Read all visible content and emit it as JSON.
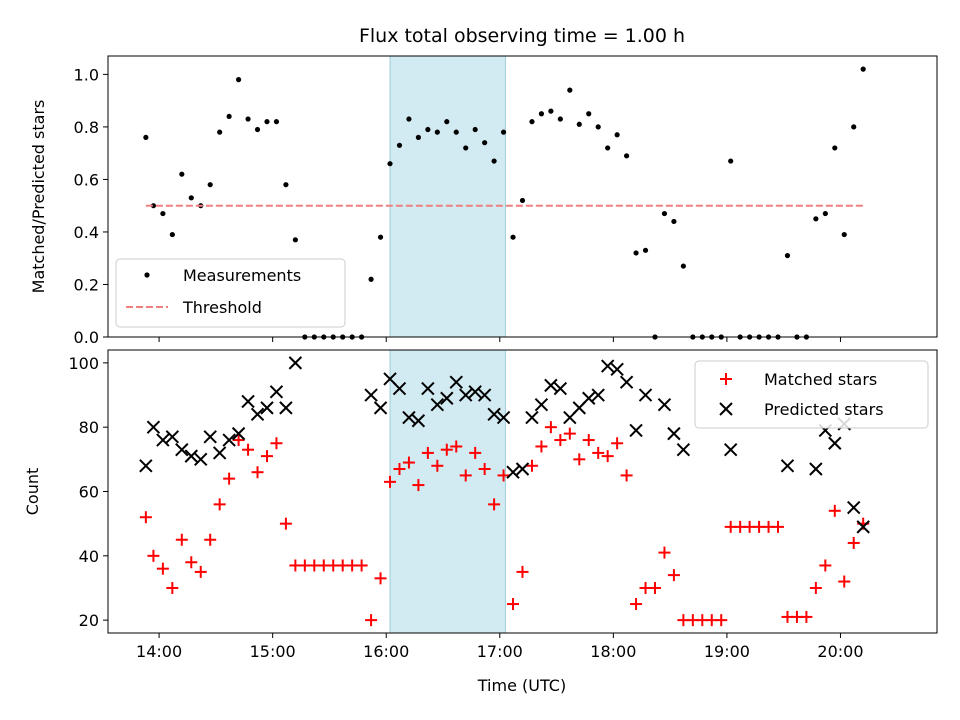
{
  "chart_data": [
    {
      "type": "scatter",
      "title": "Flux total observing time = 1.00 h",
      "xlabel": "",
      "ylabel": "Matched/Predicted stars",
      "xlim": [
        "13:33",
        "20:51"
      ],
      "ylim": [
        0,
        1.07
      ],
      "x_ticks": [
        "14:00",
        "15:00",
        "16:00",
        "17:00",
        "18:00",
        "19:00",
        "20:00"
      ],
      "x_ticklabels_visible": false,
      "y_ticks": [
        0.0,
        0.2,
        0.4,
        0.6,
        0.8,
        1.0
      ],
      "y_ticklabels": [
        "0.0",
        "0.2",
        "0.4",
        "0.6",
        "0.8",
        "1.0"
      ],
      "grid": false,
      "legend": "lower-left",
      "shaded_region": {
        "x": [
          "16:02",
          "17:03"
        ],
        "color": "#add8e6"
      },
      "series": [
        {
          "name": "Measurements",
          "marker": "dot",
          "color": "#000000",
          "points": [
            [
              "13:53",
              0.76
            ],
            [
              "13:57",
              0.5
            ],
            [
              "14:02",
              0.47
            ],
            [
              "14:07",
              0.39
            ],
            [
              "14:12",
              0.62
            ],
            [
              "14:17",
              0.53
            ],
            [
              "14:22",
              0.5
            ],
            [
              "14:27",
              0.58
            ],
            [
              "14:32",
              0.78
            ],
            [
              "14:37",
              0.84
            ],
            [
              "14:42",
              0.98
            ],
            [
              "14:47",
              0.83
            ],
            [
              "14:52",
              0.79
            ],
            [
              "14:57",
              0.82
            ],
            [
              "15:02",
              0.82
            ],
            [
              "15:07",
              0.58
            ],
            [
              "15:12",
              0.37
            ],
            [
              "15:17",
              0.0
            ],
            [
              "15:22",
              0.0
            ],
            [
              "15:27",
              0.0
            ],
            [
              "15:32",
              0.0
            ],
            [
              "15:37",
              0.0
            ],
            [
              "15:42",
              0.0
            ],
            [
              "15:47",
              0.0
            ],
            [
              "15:52",
              0.22
            ],
            [
              "15:57",
              0.38
            ],
            [
              "16:02",
              0.66
            ],
            [
              "16:07",
              0.73
            ],
            [
              "16:12",
              0.83
            ],
            [
              "16:17",
              0.76
            ],
            [
              "16:22",
              0.79
            ],
            [
              "16:27",
              0.78
            ],
            [
              "16:32",
              0.82
            ],
            [
              "16:37",
              0.78
            ],
            [
              "16:42",
              0.72
            ],
            [
              "16:47",
              0.79
            ],
            [
              "16:52",
              0.74
            ],
            [
              "16:57",
              0.67
            ],
            [
              "17:02",
              0.78
            ],
            [
              "17:07",
              0.38
            ],
            [
              "17:12",
              0.52
            ],
            [
              "17:17",
              0.82
            ],
            [
              "17:22",
              0.85
            ],
            [
              "17:27",
              0.86
            ],
            [
              "17:32",
              0.83
            ],
            [
              "17:37",
              0.94
            ],
            [
              "17:42",
              0.81
            ],
            [
              "17:47",
              0.85
            ],
            [
              "17:52",
              0.8
            ],
            [
              "17:57",
              0.72
            ],
            [
              "18:02",
              0.77
            ],
            [
              "18:07",
              0.69
            ],
            [
              "18:12",
              0.32
            ],
            [
              "18:17",
              0.33
            ],
            [
              "18:22",
              0.0
            ],
            [
              "18:27",
              0.47
            ],
            [
              "18:32",
              0.44
            ],
            [
              "18:37",
              0.27
            ],
            [
              "18:42",
              0.0
            ],
            [
              "18:47",
              0.0
            ],
            [
              "18:52",
              0.0
            ],
            [
              "18:57",
              0.0
            ],
            [
              "19:02",
              0.67
            ],
            [
              "19:07",
              0.0
            ],
            [
              "19:12",
              0.0
            ],
            [
              "19:17",
              0.0
            ],
            [
              "19:22",
              0.0
            ],
            [
              "19:27",
              0.0
            ],
            [
              "19:32",
              0.31
            ],
            [
              "19:37",
              0.0
            ],
            [
              "19:42",
              0.0
            ],
            [
              "19:47",
              0.45
            ],
            [
              "19:52",
              0.47
            ],
            [
              "19:57",
              0.72
            ],
            [
              "20:02",
              0.39
            ],
            [
              "20:07",
              0.8
            ],
            [
              "20:12",
              1.02
            ]
          ]
        },
        {
          "name": "Threshold",
          "marker": "dashed-line",
          "color": "#f08080",
          "points": [
            [
              "13:53",
              0.5
            ],
            [
              "20:12",
              0.5
            ]
          ]
        }
      ]
    },
    {
      "type": "scatter",
      "title": "",
      "xlabel": "Time (UTC)",
      "ylabel": "Count",
      "xlim": [
        "13:33",
        "20:51"
      ],
      "ylim": [
        16,
        104
      ],
      "x_ticks": [
        "14:00",
        "15:00",
        "16:00",
        "17:00",
        "18:00",
        "19:00",
        "20:00"
      ],
      "x_ticklabels": [
        "14:00",
        "15:00",
        "16:00",
        "17:00",
        "18:00",
        "19:00",
        "20:00"
      ],
      "y_ticks": [
        20,
        40,
        60,
        80,
        100
      ],
      "y_ticklabels": [
        "20",
        "40",
        "60",
        "80",
        "100"
      ],
      "grid": false,
      "legend": "top-right",
      "shaded_region": {
        "x": [
          "16:02",
          "17:03"
        ],
        "color": "#add8e6"
      },
      "series": [
        {
          "name": "Matched stars",
          "marker": "plus",
          "color": "#ff0000",
          "points": [
            [
              "13:53",
              52
            ],
            [
              "13:57",
              40
            ],
            [
              "14:02",
              36
            ],
            [
              "14:07",
              30
            ],
            [
              "14:12",
              45
            ],
            [
              "14:17",
              38
            ],
            [
              "14:22",
              35
            ],
            [
              "14:27",
              45
            ],
            [
              "14:32",
              56
            ],
            [
              "14:37",
              64
            ],
            [
              "14:42",
              76
            ],
            [
              "14:47",
              73
            ],
            [
              "14:52",
              66
            ],
            [
              "14:57",
              71
            ],
            [
              "15:02",
              75
            ],
            [
              "15:07",
              50
            ],
            [
              "15:12",
              37
            ],
            [
              "15:17",
              37
            ],
            [
              "15:22",
              37
            ],
            [
              "15:27",
              37
            ],
            [
              "15:32",
              37
            ],
            [
              "15:37",
              37
            ],
            [
              "15:42",
              37
            ],
            [
              "15:47",
              37
            ],
            [
              "15:52",
              20
            ],
            [
              "15:57",
              33
            ],
            [
              "16:02",
              63
            ],
            [
              "16:07",
              67
            ],
            [
              "16:12",
              69
            ],
            [
              "16:17",
              62
            ],
            [
              "16:22",
              72
            ],
            [
              "16:27",
              68
            ],
            [
              "16:32",
              73
            ],
            [
              "16:37",
              74
            ],
            [
              "16:42",
              65
            ],
            [
              "16:47",
              72
            ],
            [
              "16:52",
              67
            ],
            [
              "16:57",
              56
            ],
            [
              "17:02",
              65
            ],
            [
              "17:07",
              25
            ],
            [
              "17:12",
              35
            ],
            [
              "17:17",
              68
            ],
            [
              "17:22",
              74
            ],
            [
              "17:27",
              80
            ],
            [
              "17:32",
              76
            ],
            [
              "17:37",
              78
            ],
            [
              "17:42",
              70
            ],
            [
              "17:47",
              76
            ],
            [
              "17:52",
              72
            ],
            [
              "17:57",
              71
            ],
            [
              "18:02",
              75
            ],
            [
              "18:07",
              65
            ],
            [
              "18:12",
              25
            ],
            [
              "18:17",
              30
            ],
            [
              "18:22",
              30
            ],
            [
              "18:27",
              41
            ],
            [
              "18:32",
              34
            ],
            [
              "18:37",
              20
            ],
            [
              "18:42",
              20
            ],
            [
              "18:47",
              20
            ],
            [
              "18:52",
              20
            ],
            [
              "18:57",
              20
            ],
            [
              "19:02",
              49
            ],
            [
              "19:07",
              49
            ],
            [
              "19:12",
              49
            ],
            [
              "19:17",
              49
            ],
            [
              "19:22",
              49
            ],
            [
              "19:27",
              49
            ],
            [
              "19:32",
              21
            ],
            [
              "19:37",
              21
            ],
            [
              "19:42",
              21
            ],
            [
              "19:47",
              30
            ],
            [
              "19:52",
              37
            ],
            [
              "19:57",
              54
            ],
            [
              "20:02",
              32
            ],
            [
              "20:07",
              44
            ],
            [
              "20:12",
              50
            ]
          ]
        },
        {
          "name": "Predicted stars",
          "marker": "x",
          "color": "#000000",
          "points": [
            [
              "13:53",
              68
            ],
            [
              "13:57",
              80
            ],
            [
              "14:02",
              76
            ],
            [
              "14:07",
              77
            ],
            [
              "14:12",
              73
            ],
            [
              "14:17",
              71
            ],
            [
              "14:22",
              70
            ],
            [
              "14:27",
              77
            ],
            [
              "14:32",
              72
            ],
            [
              "14:37",
              76
            ],
            [
              "14:42",
              78
            ],
            [
              "14:47",
              88
            ],
            [
              "14:52",
              84
            ],
            [
              "14:57",
              86
            ],
            [
              "15:02",
              91
            ],
            [
              "15:07",
              86
            ],
            [
              "15:12",
              100
            ],
            [
              "15:52",
              90
            ],
            [
              "15:57",
              86
            ],
            [
              "16:02",
              95
            ],
            [
              "16:07",
              92
            ],
            [
              "16:12",
              83
            ],
            [
              "16:17",
              82
            ],
            [
              "16:22",
              92
            ],
            [
              "16:27",
              87
            ],
            [
              "16:32",
              89
            ],
            [
              "16:37",
              94
            ],
            [
              "16:42",
              90
            ],
            [
              "16:47",
              91
            ],
            [
              "16:52",
              90
            ],
            [
              "16:57",
              84
            ],
            [
              "17:02",
              83
            ],
            [
              "17:07",
              66
            ],
            [
              "17:12",
              67
            ],
            [
              "17:17",
              83
            ],
            [
              "17:22",
              87
            ],
            [
              "17:27",
              93
            ],
            [
              "17:32",
              92
            ],
            [
              "17:37",
              83
            ],
            [
              "17:42",
              86
            ],
            [
              "17:47",
              89
            ],
            [
              "17:52",
              90
            ],
            [
              "17:57",
              99
            ],
            [
              "18:02",
              98
            ],
            [
              "18:07",
              94
            ],
            [
              "18:12",
              79
            ],
            [
              "18:17",
              90
            ],
            [
              "18:27",
              87
            ],
            [
              "18:32",
              78
            ],
            [
              "18:37",
              73
            ],
            [
              "19:02",
              73
            ],
            [
              "19:32",
              68
            ],
            [
              "19:47",
              67
            ],
            [
              "19:52",
              79
            ],
            [
              "19:57",
              75
            ],
            [
              "20:02",
              81
            ],
            [
              "20:07",
              55
            ],
            [
              "20:12",
              49
            ]
          ]
        }
      ]
    }
  ]
}
